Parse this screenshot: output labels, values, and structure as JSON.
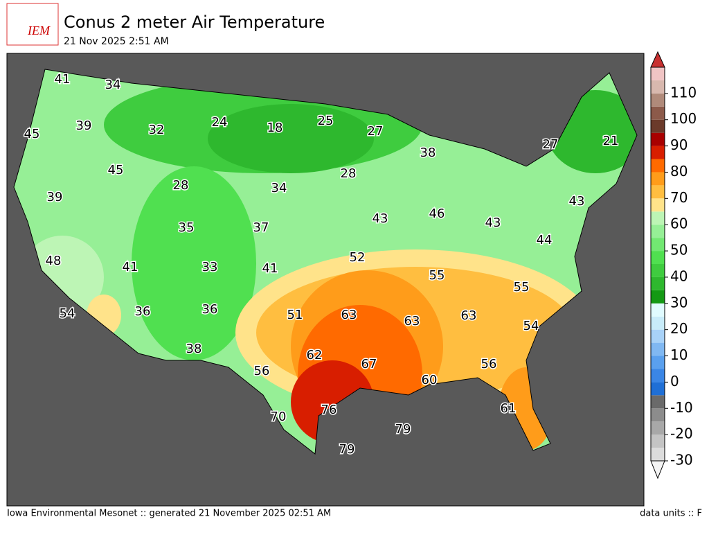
{
  "header": {
    "logo": "IEM",
    "title": "Conus 2 meter Air Temperature",
    "subtitle": "21 Nov 2025 2:51 AM"
  },
  "stations": [
    41,
    34,
    45,
    39,
    32,
    24,
    18,
    25,
    27,
    38,
    27,
    21,
    45,
    28,
    28,
    34,
    39,
    43,
    46,
    43,
    43,
    35,
    37,
    44,
    48,
    41,
    33,
    41,
    52,
    55,
    55,
    54,
    36,
    36,
    51,
    63,
    63,
    63,
    54,
    38,
    62,
    67,
    56,
    56,
    60,
    70,
    76,
    79,
    61,
    79
  ],
  "colorbar": {
    "lim": [
      -30,
      120
    ],
    "ticks": [
      -30,
      -20,
      -10,
      0,
      10,
      20,
      30,
      40,
      50,
      60,
      70,
      80,
      90,
      100,
      110
    ],
    "colors": [
      "#dcdcdc",
      "#c4c4c4",
      "#a8a8a8",
      "#8c8c8c",
      "#6a6a6a",
      "#1f6fd6",
      "#3a86e6",
      "#5aa0ee",
      "#80b8f2",
      "#a8d2f8",
      "#c8ecfa",
      "#e0fbff",
      "#149914",
      "#2eb82e",
      "#3fcc3f",
      "#50e050",
      "#72e872",
      "#96ef96",
      "#bdf5b5",
      "#ffe38a",
      "#ffbe40",
      "#ff9c1a",
      "#ff6a00",
      "#d81e00",
      "#a80000",
      "#6b3a2a",
      "#8c5a4a",
      "#b08a7a",
      "#d8b8ae",
      "#f0c4c4"
    ]
  },
  "footer": {
    "left": "Iowa Environmental Mesonet :: generated 21 November 2025 02:51 AM",
    "right": "data units :: F"
  }
}
